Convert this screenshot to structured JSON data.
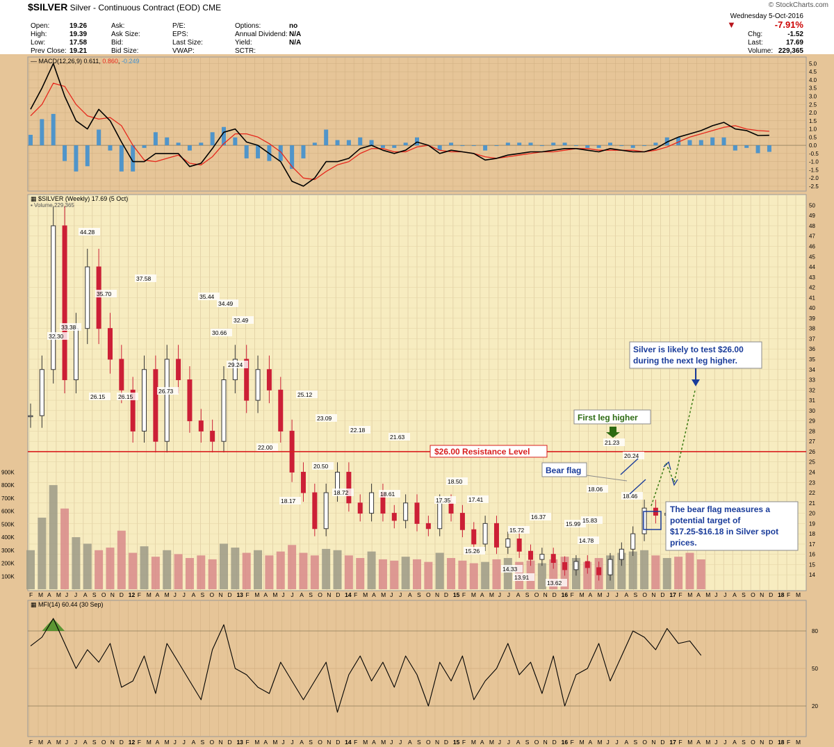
{
  "header": {
    "symbol": "$SILVER",
    "name": "Silver - Continuous Contract (EOD)",
    "exchange": "CME",
    "source": "© StockCharts.com",
    "date": "Wednesday  5-Oct-2016",
    "quote": [
      {
        "label": "Open:",
        "value": "19.26"
      },
      {
        "label": "High:",
        "value": "19.39"
      },
      {
        "label": "Low:",
        "value": "17.58"
      },
      {
        "label": "Prev Close:",
        "value": "19.21"
      }
    ],
    "col2": [
      "Ask:",
      "Ask Size:",
      "Bid:",
      "Bid Size:"
    ],
    "col3": [
      "P/E:",
      "EPS:",
      "Last Size:",
      "VWAP:"
    ],
    "col4": [
      {
        "label": "Options:",
        "value": "no"
      },
      {
        "label": "Annual Dividend:",
        "value": "N/A"
      },
      {
        "label": "Yield:",
        "value": "N/A"
      },
      {
        "label": "SCTR:",
        "value": ""
      }
    ],
    "change_pct": "-7.91%",
    "right": [
      {
        "label": "Chg:",
        "value": "-1.52"
      },
      {
        "label": "Last:",
        "value": "17.69"
      },
      {
        "label": "Volume:",
        "value": "229,365"
      }
    ]
  },
  "colors": {
    "background": "#e6c598",
    "price_panel": "#f7ecc0",
    "up": "#333333",
    "down": "#cc1f36",
    "resistance": "#d81e1e",
    "callout_blue": "#1a3c9a",
    "callout_green": "#2d6b12",
    "macd_line": "#000000",
    "signal_line": "#e6271c",
    "histogram": "#3f8fcf"
  },
  "chart_data": [
    {
      "type": "line",
      "title": "MACD(12,26,9) 0.611, 0.860, -0.249",
      "macd_value": "0.611",
      "signal_value": "0.860",
      "hist_value": "-0.249",
      "ylim": [
        -2.8,
        5.4
      ],
      "yticks": [
        "5.0",
        "4.5",
        "4.0",
        "3.5",
        "3.0",
        "2.5",
        "2.0",
        "1.5",
        "1.0",
        "0.5",
        "0.0",
        "-0.5",
        "-1.0",
        "-1.5",
        "-2.0",
        "-2.5"
      ],
      "t": [
        0,
        1,
        2,
        3,
        4,
        5,
        6,
        7,
        8,
        9,
        10,
        11,
        12,
        13,
        14,
        15,
        16,
        17,
        18,
        19,
        20,
        21,
        22,
        23,
        24,
        25,
        26,
        27,
        28,
        29,
        30,
        31,
        32,
        33,
        34,
        35,
        36,
        37,
        38,
        39,
        40,
        41,
        42,
        43,
        44,
        45,
        46,
        47,
        48,
        49,
        50,
        51,
        52,
        53,
        54,
        55,
        56,
        57,
        58,
        59,
        60,
        61,
        62,
        63,
        64,
        65,
        66,
        67,
        68
      ],
      "series": [
        {
          "name": "MACD",
          "values": [
            2.2,
            3.5,
            5.0,
            3.0,
            1.5,
            1.0,
            2.2,
            1.5,
            0.2,
            -1.0,
            -1.0,
            -0.5,
            -0.5,
            -0.5,
            -1.3,
            -1.1,
            -0.2,
            0.8,
            1.0,
            0.2,
            0.0,
            -0.5,
            -1.0,
            -2.2,
            -2.5,
            -2.0,
            -1.0,
            -1.0,
            -0.8,
            -0.2,
            0.0,
            -0.3,
            -0.5,
            -0.3,
            0.2,
            0.0,
            -0.5,
            -0.3,
            -0.4,
            -0.5,
            -0.9,
            -0.8,
            -0.6,
            -0.5,
            -0.4,
            -0.4,
            -0.3,
            -0.2,
            -0.2,
            -0.3,
            -0.4,
            -0.2,
            -0.3,
            -0.4,
            -0.4,
            -0.2,
            0.2,
            0.5,
            0.7,
            0.9,
            1.2,
            1.4,
            1.0,
            0.9,
            0.6,
            0.61,
            null,
            null,
            null
          ]
        },
        {
          "name": "Signal",
          "values": [
            1.8,
            2.5,
            3.8,
            3.6,
            2.5,
            1.8,
            1.6,
            1.7,
            1.2,
            0.0,
            -0.9,
            -1.0,
            -0.8,
            -0.6,
            -1.1,
            -1.2,
            -0.7,
            0.1,
            0.7,
            0.7,
            0.5,
            0.1,
            -0.4,
            -1.3,
            -2.0,
            -2.1,
            -1.6,
            -1.2,
            -1.0,
            -0.5,
            -0.2,
            -0.2,
            -0.4,
            -0.4,
            -0.1,
            0.0,
            -0.3,
            -0.4,
            -0.4,
            -0.5,
            -0.7,
            -0.8,
            -0.7,
            -0.6,
            -0.5,
            -0.4,
            -0.4,
            -0.3,
            -0.2,
            -0.2,
            -0.3,
            -0.3,
            -0.3,
            -0.3,
            -0.4,
            -0.3,
            -0.1,
            0.2,
            0.5,
            0.7,
            0.9,
            1.1,
            1.2,
            1.0,
            0.9,
            0.86,
            null,
            null,
            null
          ]
        }
      ]
    },
    {
      "type": "bar",
      "title": "$SILVER (Weekly) 17.69 (5 Oct)",
      "volume_label": "Volume 229,365",
      "ylim": [
        13,
        50.5
      ],
      "yticks": [
        14,
        15,
        16,
        17,
        18,
        19,
        20,
        21,
        22,
        23,
        24,
        25,
        26,
        27,
        28,
        29,
        30,
        31,
        32,
        33,
        34,
        35,
        36,
        37,
        38,
        39,
        40,
        41,
        42,
        43,
        44,
        45,
        46,
        47,
        48,
        49,
        50
      ],
      "t": [
        0,
        1,
        2,
        3,
        4,
        5,
        6,
        7,
        8,
        9,
        10,
        11,
        12,
        13,
        14,
        15,
        16,
        17,
        18,
        19,
        20,
        21,
        22,
        23,
        24,
        25,
        26,
        27,
        28,
        29,
        30,
        31,
        32,
        33,
        34,
        35,
        36,
        37,
        38,
        39,
        40,
        41,
        42,
        43,
        44,
        45,
        46,
        47,
        48,
        49,
        50,
        51,
        52,
        53,
        54,
        55,
        56,
        57,
        58,
        59,
        60,
        61,
        62,
        63,
        64,
        65,
        66,
        67,
        68
      ],
      "close": [
        29.5,
        34,
        48,
        33,
        38,
        44,
        38,
        35,
        32,
        28,
        34,
        27,
        35,
        33,
        29,
        28,
        27,
        33,
        35,
        31,
        34,
        32,
        28,
        24,
        22,
        18.5,
        22,
        24,
        21,
        20,
        22,
        20,
        19.3,
        21,
        19,
        18.5,
        21,
        20,
        18.4,
        17,
        19,
        16.7,
        17.5,
        16.3,
        15.5,
        16,
        15.2,
        14.5,
        15.3,
        14.7,
        14.0,
        15.5,
        16.5,
        18.0,
        20.5,
        19.8,
        20.0,
        19.3,
        19.0,
        17.69,
        null,
        null,
        null,
        null,
        null,
        null,
        null,
        null,
        null
      ],
      "volume_axis": [
        "900K",
        "800K",
        "700K",
        "600K",
        "500K",
        "400K",
        "300K",
        "200K",
        "100K"
      ],
      "volume": [
        300,
        550,
        800,
        620,
        400,
        350,
        300,
        320,
        450,
        280,
        330,
        250,
        300,
        270,
        240,
        260,
        230,
        350,
        320,
        280,
        300,
        260,
        290,
        340,
        280,
        260,
        310,
        300,
        260,
        240,
        290,
        230,
        220,
        250,
        230,
        210,
        280,
        240,
        220,
        200,
        210,
        230,
        240,
        210,
        220,
        200,
        230,
        250,
        240,
        210,
        240,
        260,
        280,
        290,
        300,
        260,
        240,
        250,
        280,
        229.365,
        null,
        null,
        null,
        null,
        null,
        null,
        null,
        null,
        null
      ],
      "resistance": {
        "value": 26.0,
        "label": "$26.00 Resistance Level"
      },
      "annotations": [
        "32.30",
        "33.38",
        "44.28",
        "35.70",
        "26.15",
        "26.15",
        "37.58",
        "26.73",
        "35.44",
        "34.49",
        "30.66",
        "32.49",
        "29.24",
        "22.00",
        "18.17",
        "25.12",
        "23.09",
        "20.50",
        "22.18",
        "18.72",
        "21.63",
        "18.61",
        "18.50",
        "17.35",
        "17.41",
        "15.26",
        "15.72",
        "14.33",
        "13.91",
        "16.37",
        "13.62",
        "15.99",
        "14.78",
        "15.83",
        "18.06",
        "21.23",
        "20.24",
        "18.46"
      ],
      "callouts": {
        "bear_flag": "Bear flag",
        "first_leg": "First leg higher",
        "test_26_line1": "Silver is likely to test $26.00",
        "test_26_line2": "during the next leg higher.",
        "target_line1": "The bear flag measures a",
        "target_line2": "potential target of",
        "target_line3": "$17.25-$16.18 in Silver spot",
        "target_line4": "prices."
      }
    },
    {
      "type": "line",
      "title": "MFI(14) 60.44 (30 Sep)",
      "ylim": [
        0,
        100
      ],
      "yticks": [
        "80",
        "50",
        "20"
      ],
      "t": [
        0,
        1,
        2,
        3,
        4,
        5,
        6,
        7,
        8,
        9,
        10,
        11,
        12,
        13,
        14,
        15,
        16,
        17,
        18,
        19,
        20,
        21,
        22,
        23,
        24,
        25,
        26,
        27,
        28,
        29,
        30,
        31,
        32,
        33,
        34,
        35,
        36,
        37,
        38,
        39,
        40,
        41,
        42,
        43,
        44,
        45,
        46,
        47,
        48,
        49,
        50,
        51,
        52,
        53,
        54,
        55,
        56,
        57,
        58,
        59,
        60,
        61,
        62,
        63,
        64,
        65,
        66,
        67,
        68
      ],
      "values": [
        68,
        75,
        90,
        70,
        50,
        65,
        55,
        70,
        35,
        40,
        60,
        30,
        70,
        55,
        40,
        25,
        65,
        85,
        50,
        45,
        35,
        30,
        55,
        40,
        25,
        40,
        55,
        15,
        45,
        60,
        40,
        55,
        35,
        60,
        45,
        20,
        55,
        40,
        60,
        25,
        40,
        50,
        70,
        45,
        55,
        30,
        60,
        20,
        45,
        50,
        70,
        40,
        60,
        80,
        75,
        65,
        82,
        70,
        72,
        60.44,
        null,
        null,
        null,
        null,
        null,
        null,
        null,
        null,
        null
      ]
    }
  ],
  "x_axis": {
    "labels": [
      "F",
      "M",
      "A",
      "M",
      "J",
      "J",
      "A",
      "S",
      "O",
      "N",
      "D",
      "12",
      "F",
      "M",
      "A",
      "M",
      "J",
      "J",
      "A",
      "S",
      "O",
      "N",
      "D",
      "13",
      "F",
      "M",
      "A",
      "M",
      "J",
      "J",
      "A",
      "S",
      "O",
      "N",
      "D",
      "14",
      "F",
      "M",
      "A",
      "M",
      "J",
      "J",
      "A",
      "S",
      "O",
      "N",
      "D",
      "15",
      "F",
      "M",
      "A",
      "M",
      "J",
      "J",
      "A",
      "S",
      "O",
      "N",
      "D",
      "16",
      "F",
      "M",
      "A",
      "M",
      "J",
      "J",
      "A",
      "S",
      "O",
      "N",
      "D",
      "17",
      "F",
      "M",
      "A",
      "M",
      "J",
      "J",
      "A",
      "S",
      "O",
      "N",
      "D",
      "18",
      "F",
      "M"
    ]
  }
}
